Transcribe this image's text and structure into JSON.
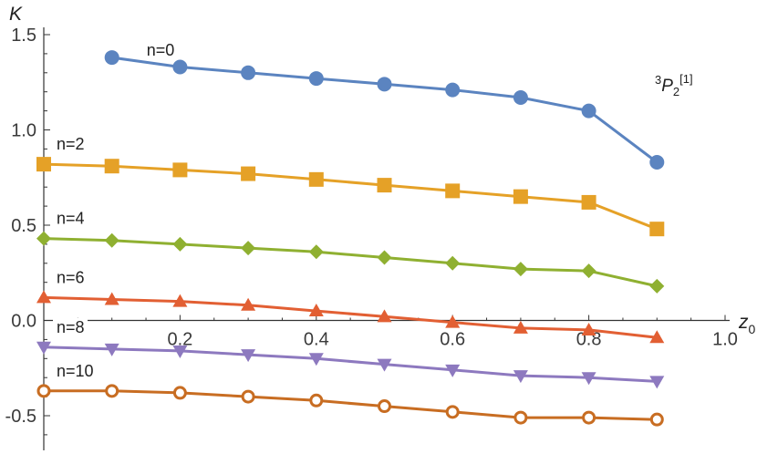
{
  "chart_data": {
    "type": "line",
    "title": "",
    "xlabel": "z",
    "xlabel_sub": "0",
    "ylabel": "K",
    "xlim": [
      0,
      1.0
    ],
    "ylim": [
      -0.7,
      1.5
    ],
    "x_ticks": [
      0.2,
      0.4,
      0.6,
      0.8,
      1.0
    ],
    "x_tick_labels": [
      "0.2",
      "0.4",
      "0.6",
      "0.8",
      "1.0"
    ],
    "y_ticks": [
      1.5,
      1.0,
      0.5,
      0.0,
      -0.5
    ],
    "y_tick_labels": [
      "1.5",
      "1.0",
      "0.5",
      "0.0",
      "-0.5"
    ],
    "grid": false,
    "annotation": {
      "pre_sup": "3",
      "letter": "P",
      "sub": "2",
      "post_sup": "[1]"
    },
    "series": [
      {
        "name": "n=0",
        "color": "#5b84c0",
        "marker": "circle",
        "x": [
          0.1,
          0.2,
          0.3,
          0.4,
          0.5,
          0.6,
          0.7,
          0.8,
          0.9
        ],
        "y": [
          1.38,
          1.33,
          1.3,
          1.27,
          1.24,
          1.21,
          1.17,
          1.1,
          0.83
        ]
      },
      {
        "name": "n=2",
        "color": "#e5a127",
        "marker": "square",
        "x": [
          0.0,
          0.1,
          0.2,
          0.3,
          0.4,
          0.5,
          0.6,
          0.7,
          0.8,
          0.9
        ],
        "y": [
          0.82,
          0.81,
          0.79,
          0.77,
          0.74,
          0.71,
          0.68,
          0.65,
          0.62,
          0.48
        ]
      },
      {
        "name": "n=4",
        "color": "#8fb031",
        "marker": "diamond",
        "x": [
          0.0,
          0.1,
          0.2,
          0.3,
          0.4,
          0.5,
          0.6,
          0.7,
          0.8,
          0.9
        ],
        "y": [
          0.43,
          0.42,
          0.4,
          0.38,
          0.36,
          0.33,
          0.3,
          0.27,
          0.26,
          0.18
        ]
      },
      {
        "name": "n=6",
        "color": "#e25f33",
        "marker": "triangle-up",
        "x": [
          0.0,
          0.1,
          0.2,
          0.3,
          0.4,
          0.5,
          0.6,
          0.7,
          0.8,
          0.9
        ],
        "y": [
          0.12,
          0.11,
          0.1,
          0.08,
          0.05,
          0.02,
          -0.01,
          -0.04,
          -0.05,
          -0.09
        ]
      },
      {
        "name": "n=8",
        "color": "#8d79bf",
        "marker": "triangle-down",
        "x": [
          0.0,
          0.1,
          0.2,
          0.3,
          0.4,
          0.5,
          0.6,
          0.7,
          0.8,
          0.9
        ],
        "y": [
          -0.14,
          -0.15,
          -0.16,
          -0.18,
          -0.2,
          -0.23,
          -0.26,
          -0.29,
          -0.3,
          -0.32
        ]
      },
      {
        "name": "n=10",
        "color": "#c86d22",
        "marker": "open-circle",
        "x": [
          0.0,
          0.1,
          0.2,
          0.3,
          0.4,
          0.5,
          0.6,
          0.7,
          0.8,
          0.9
        ],
        "y": [
          -0.37,
          -0.37,
          -0.38,
          -0.4,
          -0.42,
          -0.45,
          -0.48,
          -0.51,
          -0.51,
          -0.52
        ]
      }
    ]
  }
}
